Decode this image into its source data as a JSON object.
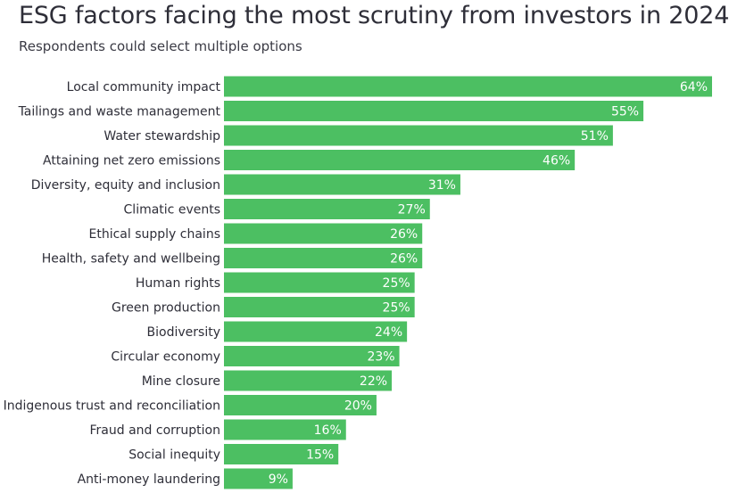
{
  "chart_data": {
    "type": "bar",
    "orientation": "horizontal",
    "title": "ESG factors facing the most scrutiny from investors in 2024",
    "subtitle": "Respondents could select multiple options",
    "categories": [
      "Local community impact",
      "Tailings and waste management",
      "Water stewardship",
      "Attaining net zero emissions",
      "Diversity, equity and inclusion",
      "Climatic events",
      "Ethical supply chains",
      "Health, safety and wellbeing",
      "Human rights",
      "Green production",
      "Biodiversity",
      "Circular economy",
      "Mine closure",
      "Indigenous trust and reconciliation",
      "Fraud and corruption",
      "Social inequity",
      "Anti-money laundering"
    ],
    "values": [
      64,
      55,
      51,
      46,
      31,
      27,
      26,
      26,
      25,
      25,
      24,
      23,
      22,
      20,
      16,
      15,
      9
    ],
    "value_labels": [
      "64%",
      "55%",
      "51%",
      "46%",
      "31%",
      "27%",
      "26%",
      "26%",
      "25%",
      "25%",
      "24%",
      "23%",
      "22%",
      "20%",
      "16%",
      "15%",
      "9%"
    ],
    "unit": "%",
    "xlim": [
      0,
      64
    ],
    "grid": false,
    "bar_color": "#4cbf62",
    "label_color": "#ffffff"
  }
}
